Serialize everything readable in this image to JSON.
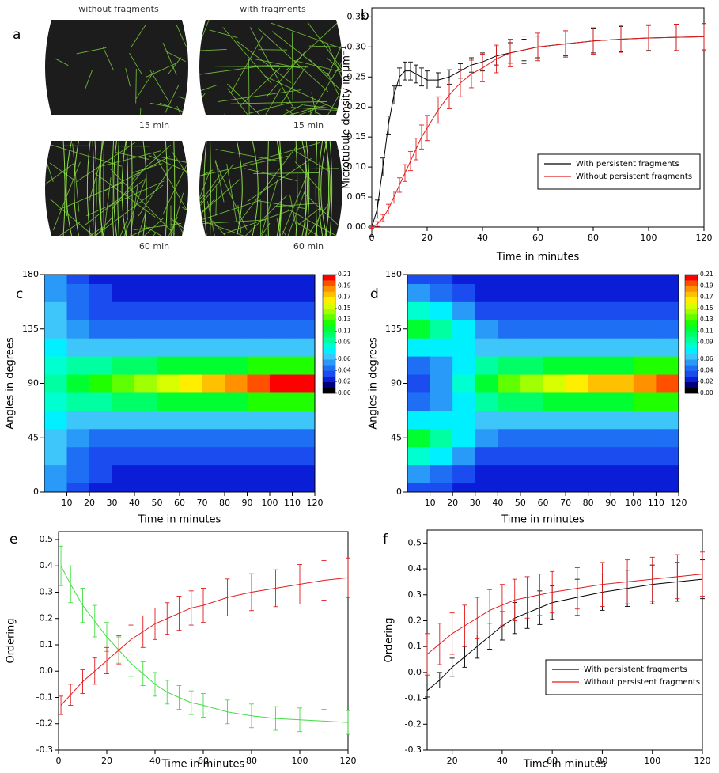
{
  "chart_data": [
    {
      "type": "image",
      "label": "a",
      "headers": [
        "without fragments",
        "with fragments"
      ],
      "captions": [
        "15 min",
        "15 min",
        "60 min",
        "60 min"
      ]
    },
    {
      "type": "line",
      "label": "b",
      "xlabel": "Time in minutes",
      "ylabel": "Microtubule density in μm⁻¹",
      "x": [
        0,
        2,
        4,
        6,
        8,
        10,
        12,
        14,
        16,
        18,
        20,
        24,
        28,
        32,
        36,
        40,
        45,
        50,
        55,
        60,
        70,
        80,
        90,
        100,
        110,
        120
      ],
      "xlim": [
        0,
        120
      ],
      "xticks": [
        0,
        20,
        40,
        60,
        80,
        100,
        120
      ],
      "ylim": [
        0,
        0.365
      ],
      "yticks": [
        {
          "value": 0,
          "label": "0.00"
        },
        0.05,
        {
          "value": 0.1,
          "label": "0.10"
        },
        0.15,
        {
          "value": 0.2,
          "label": "0.20"
        },
        0.25,
        {
          "value": 0.3,
          "label": "0.30"
        },
        0.35
      ],
      "series": [
        {
          "name": "With persistent fragments",
          "color": "#000000",
          "values": [
            0.0,
            0.03,
            0.1,
            0.17,
            0.22,
            0.25,
            0.26,
            0.26,
            0.255,
            0.25,
            0.245,
            0.245,
            0.25,
            0.26,
            0.27,
            0.275,
            0.285,
            0.29,
            0.295,
            0.3,
            0.305,
            0.31,
            0.313,
            0.315,
            0.316,
            0.317
          ],
          "errors": [
            0.015,
            0.015,
            0.015,
            0.015,
            0.015,
            0.015,
            0.015,
            0.015,
            0.015,
            0.015,
            0.015,
            0.012,
            0.012,
            0.012,
            0.012,
            0.015,
            0.015,
            0.017,
            0.018,
            0.018,
            0.02,
            0.02,
            0.021,
            0.021,
            0.022,
            0.022
          ]
        },
        {
          "name": "Without persistent fragments",
          "color": "#e31a1c",
          "values": [
            0.0,
            0.005,
            0.015,
            0.03,
            0.05,
            0.07,
            0.09,
            0.11,
            0.13,
            0.15,
            0.165,
            0.195,
            0.22,
            0.24,
            0.255,
            0.265,
            0.28,
            0.29,
            0.295,
            0.3,
            0.305,
            0.31,
            0.313,
            0.315,
            0.316,
            0.317
          ],
          "errors": [
            0.002,
            0.004,
            0.006,
            0.008,
            0.01,
            0.012,
            0.014,
            0.016,
            0.018,
            0.02,
            0.021,
            0.022,
            0.023,
            0.023,
            0.023,
            0.023,
            0.023,
            0.023,
            0.023,
            0.023,
            0.022,
            0.022,
            0.022,
            0.022,
            0.022,
            0.022
          ]
        }
      ]
    },
    {
      "type": "contour",
      "label": "c",
      "xlabel": "Time in minutes",
      "ylabel": "Angles in degrees",
      "x": [
        5,
        15,
        25,
        35,
        45,
        55,
        65,
        75,
        85,
        95,
        105,
        115
      ],
      "y": [
        0,
        15,
        30,
        45,
        60,
        75,
        90,
        105,
        120,
        135,
        150,
        165,
        180
      ],
      "xlim": [
        0,
        120
      ],
      "xticks": [
        10,
        20,
        30,
        40,
        50,
        60,
        70,
        80,
        90,
        100,
        110,
        120
      ],
      "ylim": [
        0,
        180
      ],
      "yticks": [
        0,
        45,
        90,
        135,
        180
      ],
      "zlim": [
        0,
        0.21
      ],
      "zticks": [
        {
          "value": 0,
          "label": "0.00"
        },
        0.02,
        0.04,
        0.06,
        0.09,
        0.11,
        0.13,
        0.15,
        0.17,
        0.19,
        0.21
      ],
      "colorscale": [
        "#000000",
        "#00007a",
        "#0a1ed8",
        "#1a4cf0",
        "#1f6ff5",
        "#2a9af8",
        "#3ec6fb",
        "#00f0ff",
        "#00ffd0",
        "#00ffa0",
        "#00ff66",
        "#00ff30",
        "#20ff00",
        "#60ff00",
        "#a0ff00",
        "#d8ff00",
        "#ffee00",
        "#ffc000",
        "#ff9000",
        "#ff5000",
        "#ff0000"
      ],
      "z": [
        [
          0.05,
          0.035,
          0.025,
          0.02,
          0.02,
          0.02,
          0.02,
          0.02,
          0.02,
          0.02,
          0.02,
          0.02
        ],
        [
          0.055,
          0.04,
          0.03,
          0.025,
          0.022,
          0.022,
          0.022,
          0.022,
          0.022,
          0.022,
          0.022,
          0.022
        ],
        [
          0.06,
          0.045,
          0.035,
          0.03,
          0.03,
          0.03,
          0.03,
          0.03,
          0.03,
          0.03,
          0.03,
          0.03
        ],
        [
          0.065,
          0.05,
          0.045,
          0.04,
          0.04,
          0.04,
          0.04,
          0.04,
          0.04,
          0.04,
          0.04,
          0.04
        ],
        [
          0.07,
          0.065,
          0.06,
          0.06,
          0.06,
          0.06,
          0.06,
          0.06,
          0.06,
          0.06,
          0.06,
          0.06
        ],
        [
          0.08,
          0.09,
          0.095,
          0.1,
          0.105,
          0.11,
          0.11,
          0.115,
          0.115,
          0.12,
          0.12,
          0.12
        ],
        [
          0.09,
          0.11,
          0.12,
          0.13,
          0.14,
          0.15,
          0.16,
          0.17,
          0.18,
          0.19,
          0.2,
          0.2
        ],
        [
          0.08,
          0.09,
          0.095,
          0.1,
          0.105,
          0.11,
          0.11,
          0.115,
          0.115,
          0.12,
          0.12,
          0.12
        ],
        [
          0.07,
          0.065,
          0.06,
          0.06,
          0.06,
          0.06,
          0.06,
          0.06,
          0.06,
          0.06,
          0.06,
          0.06
        ],
        [
          0.065,
          0.05,
          0.045,
          0.04,
          0.04,
          0.04,
          0.04,
          0.04,
          0.04,
          0.04,
          0.04,
          0.04
        ],
        [
          0.06,
          0.045,
          0.035,
          0.03,
          0.03,
          0.03,
          0.03,
          0.03,
          0.03,
          0.03,
          0.03,
          0.03
        ],
        [
          0.055,
          0.04,
          0.03,
          0.025,
          0.022,
          0.022,
          0.022,
          0.022,
          0.022,
          0.022,
          0.022,
          0.022
        ],
        [
          0.05,
          0.035,
          0.025,
          0.02,
          0.02,
          0.02,
          0.02,
          0.02,
          0.02,
          0.02,
          0.02,
          0.02
        ]
      ]
    },
    {
      "type": "contour",
      "label": "d",
      "xlabel": "Time in minutes",
      "ylabel": "Angles in degrees",
      "x": [
        5,
        15,
        25,
        35,
        45,
        55,
        65,
        75,
        85,
        95,
        105,
        115
      ],
      "y": [
        0,
        15,
        30,
        45,
        60,
        75,
        90,
        105,
        120,
        135,
        150,
        165,
        180
      ],
      "xlim": [
        0,
        120
      ],
      "xticks": [
        10,
        20,
        30,
        40,
        50,
        60,
        70,
        80,
        90,
        100,
        110,
        120
      ],
      "ylim": [
        0,
        180
      ],
      "yticks": [
        0,
        45,
        90,
        135,
        180
      ],
      "zlim": [
        0,
        0.21
      ],
      "zticks": [
        {
          "value": 0,
          "label": "0.00"
        },
        0.02,
        0.04,
        0.06,
        0.09,
        0.11,
        0.13,
        0.15,
        0.17,
        0.19,
        0.21
      ],
      "colorscale": [
        "#000000",
        "#00007a",
        "#0a1ed8",
        "#1a4cf0",
        "#1f6ff5",
        "#2a9af8",
        "#3ec6fb",
        "#00f0ff",
        "#00ffd0",
        "#00ffa0",
        "#00ff66",
        "#00ff30",
        "#20ff00",
        "#60ff00",
        "#a0ff00",
        "#d8ff00",
        "#ffee00",
        "#ffc000",
        "#ff9000",
        "#ff5000",
        "#ff0000"
      ],
      "z": [
        [
          0.03,
          0.03,
          0.025,
          0.02,
          0.02,
          0.02,
          0.02,
          0.02,
          0.02,
          0.02,
          0.02,
          0.02
        ],
        [
          0.05,
          0.045,
          0.035,
          0.025,
          0.022,
          0.022,
          0.022,
          0.022,
          0.022,
          0.022,
          0.022,
          0.022
        ],
        [
          0.08,
          0.07,
          0.055,
          0.035,
          0.03,
          0.03,
          0.03,
          0.03,
          0.03,
          0.03,
          0.03,
          0.03
        ],
        [
          0.11,
          0.09,
          0.07,
          0.05,
          0.045,
          0.04,
          0.04,
          0.04,
          0.04,
          0.04,
          0.04,
          0.04
        ],
        [
          0.07,
          0.07,
          0.07,
          0.065,
          0.065,
          0.06,
          0.06,
          0.06,
          0.06,
          0.06,
          0.06,
          0.06
        ],
        [
          0.04,
          0.05,
          0.07,
          0.09,
          0.1,
          0.105,
          0.11,
          0.11,
          0.115,
          0.115,
          0.12,
          0.12
        ],
        [
          0.03,
          0.05,
          0.08,
          0.11,
          0.13,
          0.14,
          0.15,
          0.16,
          0.17,
          0.17,
          0.18,
          0.19
        ],
        [
          0.04,
          0.05,
          0.07,
          0.09,
          0.1,
          0.105,
          0.11,
          0.11,
          0.115,
          0.115,
          0.12,
          0.12
        ],
        [
          0.07,
          0.07,
          0.07,
          0.065,
          0.065,
          0.06,
          0.06,
          0.06,
          0.06,
          0.06,
          0.06,
          0.06
        ],
        [
          0.11,
          0.09,
          0.07,
          0.05,
          0.045,
          0.04,
          0.04,
          0.04,
          0.04,
          0.04,
          0.04,
          0.04
        ],
        [
          0.08,
          0.07,
          0.055,
          0.035,
          0.03,
          0.03,
          0.03,
          0.03,
          0.03,
          0.03,
          0.03,
          0.03
        ],
        [
          0.05,
          0.045,
          0.035,
          0.025,
          0.022,
          0.022,
          0.022,
          0.022,
          0.022,
          0.022,
          0.022,
          0.022
        ],
        [
          0.03,
          0.03,
          0.025,
          0.02,
          0.02,
          0.02,
          0.02,
          0.02,
          0.02,
          0.02,
          0.02,
          0.02
        ]
      ]
    },
    {
      "type": "line",
      "label": "e",
      "xlabel": "Time in minutes",
      "ylabel": "Ordering",
      "x": [
        1,
        5,
        10,
        15,
        20,
        25,
        30,
        35,
        40,
        45,
        50,
        55,
        60,
        70,
        80,
        90,
        100,
        110,
        120
      ],
      "xlim": [
        0,
        120
      ],
      "xticks": [
        0,
        20,
        40,
        60,
        80,
        100,
        120
      ],
      "ylim": [
        -0.3,
        0.53
      ],
      "yticks": [
        -0.3,
        -0.2,
        -0.1,
        {
          "value": 0,
          "label": "0.0"
        },
        0.1,
        0.2,
        0.3,
        0.4,
        0.5
      ],
      "series": [
        {
          "color": "#44dd44",
          "values": [
            0.4,
            0.33,
            0.25,
            0.19,
            0.13,
            0.08,
            0.03,
            -0.01,
            -0.05,
            -0.08,
            -0.1,
            -0.12,
            -0.13,
            -0.155,
            -0.17,
            -0.18,
            -0.185,
            -0.19,
            -0.195
          ],
          "errors": [
            0.075,
            0.07,
            0.065,
            0.06,
            0.055,
            0.05,
            0.05,
            0.045,
            0.045,
            0.045,
            0.045,
            0.045,
            0.045,
            0.045,
            0.045,
            0.045,
            0.045,
            0.045,
            0.045
          ]
        },
        {
          "color": "#e31a1c",
          "values": [
            -0.13,
            -0.09,
            -0.04,
            0.0,
            0.04,
            0.08,
            0.12,
            0.15,
            0.18,
            0.2,
            0.22,
            0.24,
            0.25,
            0.28,
            0.3,
            0.315,
            0.33,
            0.345,
            0.355
          ],
          "errors": [
            0.035,
            0.04,
            0.045,
            0.05,
            0.05,
            0.055,
            0.055,
            0.06,
            0.06,
            0.06,
            0.065,
            0.065,
            0.065,
            0.07,
            0.07,
            0.07,
            0.075,
            0.075,
            0.075
          ]
        }
      ]
    },
    {
      "type": "line",
      "label": "f",
      "xlabel": "Time in minutes",
      "ylabel": "Ordering",
      "x": [
        10,
        15,
        20,
        25,
        30,
        35,
        40,
        45,
        50,
        55,
        60,
        70,
        80,
        90,
        100,
        110,
        120
      ],
      "xlim": [
        10,
        120
      ],
      "xticks": [
        20,
        40,
        60,
        80,
        100,
        120
      ],
      "ylim": [
        -0.3,
        0.55
      ],
      "yticks": [
        -0.3,
        -0.2,
        -0.1,
        {
          "value": 0,
          "label": "0.0"
        },
        0.1,
        0.2,
        0.3,
        0.4,
        0.5
      ],
      "series": [
        {
          "name": "With persistent fragments",
          "color": "#000000",
          "values": [
            -0.07,
            -0.03,
            0.02,
            0.06,
            0.1,
            0.14,
            0.18,
            0.21,
            0.23,
            0.25,
            0.27,
            0.29,
            0.31,
            0.325,
            0.34,
            0.35,
            0.36
          ],
          "errors": [
            0.025,
            0.03,
            0.035,
            0.04,
            0.045,
            0.05,
            0.055,
            0.06,
            0.06,
            0.065,
            0.065,
            0.07,
            0.07,
            0.07,
            0.075,
            0.075,
            0.075
          ]
        },
        {
          "name": "Without persistent fragments",
          "color": "#e31a1c",
          "values": [
            0.07,
            0.11,
            0.15,
            0.18,
            0.21,
            0.24,
            0.26,
            0.28,
            0.29,
            0.3,
            0.31,
            0.325,
            0.34,
            0.35,
            0.36,
            0.37,
            0.38
          ],
          "errors": [
            0.08,
            0.08,
            0.08,
            0.08,
            0.08,
            0.08,
            0.08,
            0.08,
            0.08,
            0.08,
            0.08,
            0.08,
            0.085,
            0.085,
            0.085,
            0.085,
            0.085
          ]
        }
      ]
    }
  ]
}
